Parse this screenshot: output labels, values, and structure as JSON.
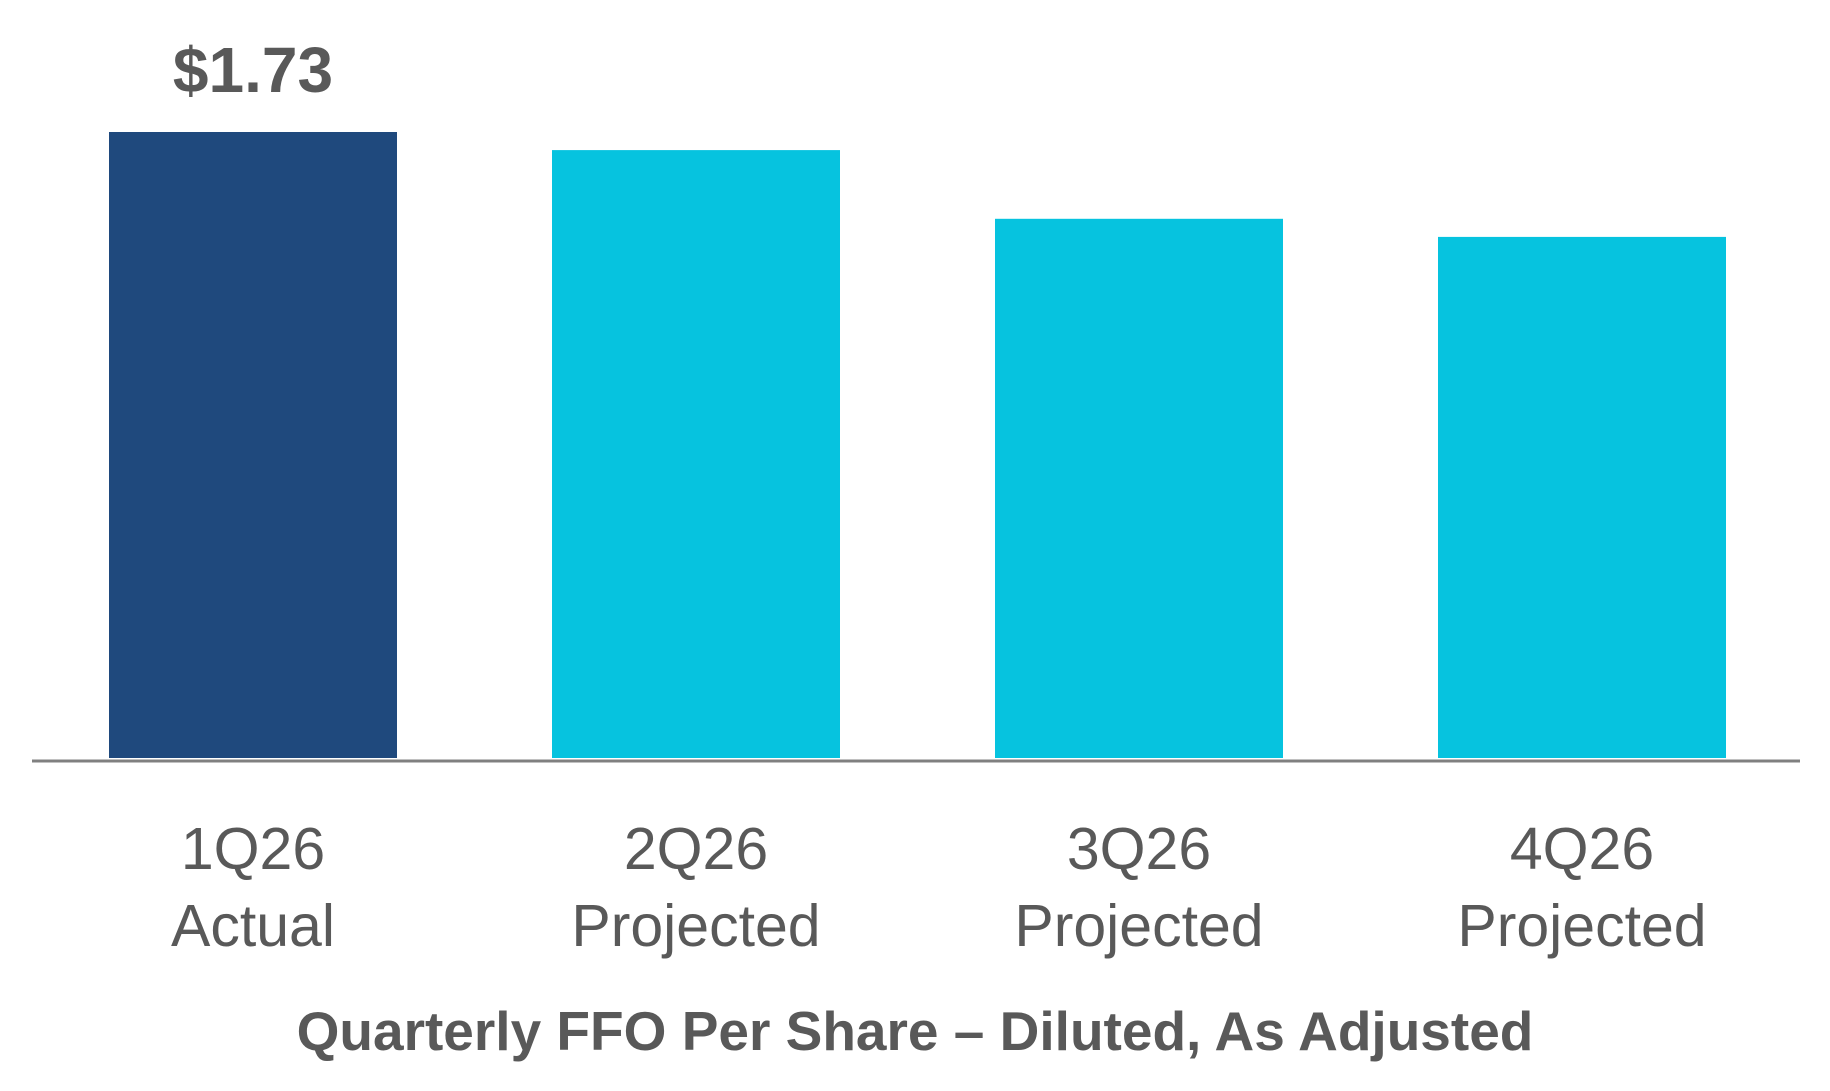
{
  "chart_data": {
    "type": "bar",
    "categories": [
      [
        "1Q26",
        "Actual"
      ],
      [
        "2Q26",
        "Projected"
      ],
      [
        "3Q26",
        "Projected"
      ],
      [
        "4Q26",
        "Projected"
      ]
    ],
    "values": [
      1.73,
      1.68,
      1.49,
      1.44
    ],
    "data_labels": [
      "$1.73",
      "",
      "",
      ""
    ],
    "colors": [
      "#1F497D",
      "#06C3DF",
      "#06C3DF",
      "#06C3DF"
    ],
    "axis_color": "#808080",
    "title": "Quarterly FFO Per Share – Diluted, As Adjusted",
    "xlabel": "",
    "ylabel": "",
    "ylim": [
      0,
      1.73
    ],
    "grid": false,
    "legend": "none"
  }
}
